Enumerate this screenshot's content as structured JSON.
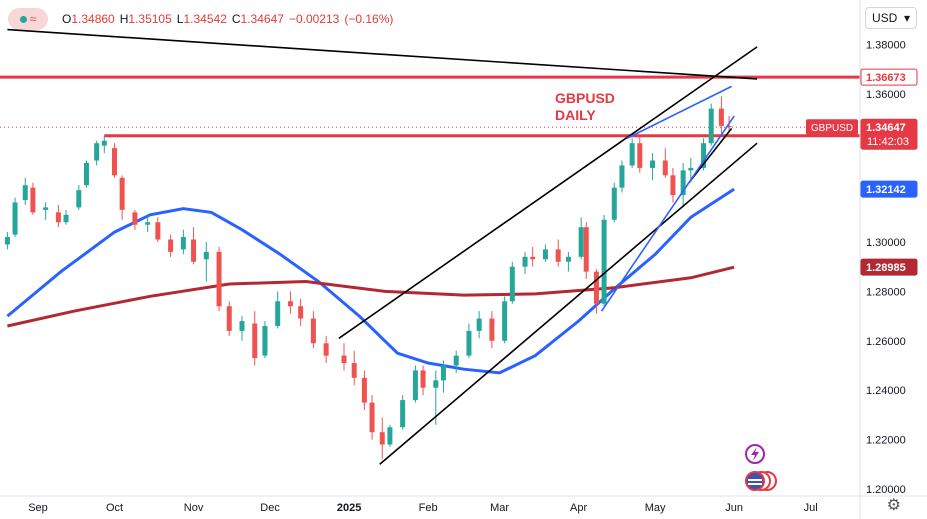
{
  "header": {
    "ohlc": {
      "open_label": "O",
      "open": "1.34860",
      "high_label": "H",
      "high": "1.35105",
      "low_label": "L",
      "low": "1.34542",
      "close_label": "C",
      "close": "1.34647",
      "change": "−0.00213",
      "change_pct": "(−0.16%)"
    },
    "currency": "USD",
    "currency_caret": "▾"
  },
  "chart_data": {
    "type": "candlestick",
    "annotation": [
      "GBPUSD",
      "DAILY"
    ],
    "y_ticks": [
      1.2,
      1.22,
      1.24,
      1.26,
      1.28,
      1.3,
      1.36,
      1.38
    ],
    "y_range": [
      1.19917,
      1.39883
    ],
    "x_ticks": [
      {
        "label": "Sep",
        "date": "2024-09-01"
      },
      {
        "label": "Oct",
        "date": "2024-10-01"
      },
      {
        "label": "Nov",
        "date": "2024-11-01"
      },
      {
        "label": "Dec",
        "date": "2024-12-01"
      },
      {
        "label": "2025",
        "date": "2025-01-01"
      },
      {
        "label": "Feb",
        "date": "2025-02-01"
      },
      {
        "label": "Mar",
        "date": "2025-03-01"
      },
      {
        "label": "Apr",
        "date": "2025-04-01"
      },
      {
        "label": "May",
        "date": "2025-05-01"
      },
      {
        "label": "Jun",
        "date": "2025-06-01"
      },
      {
        "label": "Jul",
        "date": "2025-07-01"
      }
    ],
    "price_labels": [
      {
        "text": "1.36673",
        "value": 1.36673,
        "style": "red-outline"
      },
      {
        "text": "1.34647",
        "value": 1.34647,
        "style": "red-fill",
        "symbol": "GBPUSD",
        "timer": "11:42:03"
      },
      {
        "text": "1.32142",
        "value": 1.32142,
        "style": "blue-fill"
      },
      {
        "text": "1.28985",
        "value": 1.28985,
        "style": "darkred-fill"
      }
    ],
    "horizontal_lines": [
      {
        "value": 1.36673,
        "color": "#e53945"
      },
      {
        "value": 1.343,
        "color": "#e53945",
        "from_date": "2024-09-27"
      }
    ],
    "current_price": 1.34647,
    "moving_averages": [
      {
        "color": "#2962ff",
        "points": [
          [
            "2024-08-20",
            1.27
          ],
          [
            "2024-09-10",
            1.288
          ],
          [
            "2024-10-01",
            1.304
          ],
          [
            "2024-10-15",
            1.311
          ],
          [
            "2024-10-28",
            1.3135
          ],
          [
            "2024-11-08",
            1.312
          ],
          [
            "2024-11-20",
            1.305
          ],
          [
            "2024-12-05",
            1.295
          ],
          [
            "2024-12-20",
            1.284
          ],
          [
            "2025-01-05",
            1.27
          ],
          [
            "2025-01-20",
            1.255
          ],
          [
            "2025-02-01",
            1.251
          ],
          [
            "2025-02-15",
            1.2485
          ],
          [
            "2025-03-01",
            1.247
          ],
          [
            "2025-03-15",
            1.254
          ],
          [
            "2025-04-01",
            1.268
          ],
          [
            "2025-04-15",
            1.281
          ],
          [
            "2025-05-01",
            1.295
          ],
          [
            "2025-05-15",
            1.31
          ],
          [
            "2025-06-01",
            1.3214
          ]
        ]
      },
      {
        "color": "#b22833",
        "points": [
          [
            "2024-08-20",
            1.266
          ],
          [
            "2024-09-15",
            1.272
          ],
          [
            "2024-10-15",
            1.278
          ],
          [
            "2024-11-15",
            1.283
          ],
          [
            "2024-12-15",
            1.284
          ],
          [
            "2025-01-15",
            1.28
          ],
          [
            "2025-02-15",
            1.2785
          ],
          [
            "2025-03-15",
            1.279
          ],
          [
            "2025-04-15",
            1.2815
          ],
          [
            "2025-05-15",
            1.2855
          ],
          [
            "2025-06-01",
            1.2898
          ]
        ]
      }
    ],
    "trendlines": [
      {
        "color": "#000000",
        "points": [
          [
            "2024-08-20",
            1.386
          ],
          [
            "2025-06-10",
            1.366
          ]
        ]
      },
      {
        "color": "#000000",
        "points": [
          [
            "2024-12-28",
            1.261
          ],
          [
            "2025-06-10",
            1.379
          ]
        ]
      },
      {
        "color": "#000000",
        "points": [
          [
            "2025-01-13",
            1.21
          ],
          [
            "2025-06-10",
            1.34
          ]
        ]
      },
      {
        "color": "#000000",
        "points": [
          [
            "2025-05-15",
            1.325
          ],
          [
            "2025-05-31",
            1.346
          ]
        ]
      },
      {
        "color": "#2962ff",
        "points": [
          [
            "2025-04-10",
            1.272
          ],
          [
            "2025-06-01",
            1.351
          ]
        ]
      },
      {
        "color": "#2962ff",
        "points": [
          [
            "2025-04-20",
            1.342
          ],
          [
            "2025-05-31",
            1.363
          ]
        ]
      }
    ],
    "candles": [
      [
        "2024-08-20",
        1.299,
        1.304,
        1.297,
        1.302
      ],
      [
        "2024-08-23",
        1.303,
        1.318,
        1.302,
        1.316
      ],
      [
        "2024-08-27",
        1.317,
        1.326,
        1.315,
        1.323
      ],
      [
        "2024-08-30",
        1.322,
        1.324,
        1.311,
        1.312
      ],
      [
        "2024-09-04",
        1.313,
        1.316,
        1.309,
        1.314
      ],
      [
        "2024-09-09",
        1.312,
        1.315,
        1.306,
        1.308
      ],
      [
        "2024-09-12",
        1.308,
        1.313,
        1.307,
        1.311
      ],
      [
        "2024-09-17",
        1.314,
        1.323,
        1.313,
        1.321
      ],
      [
        "2024-09-20",
        1.323,
        1.333,
        1.322,
        1.332
      ],
      [
        "2024-09-24",
        1.333,
        1.341,
        1.331,
        1.34
      ],
      [
        "2024-09-27",
        1.339,
        1.343,
        1.336,
        1.341
      ],
      [
        "2024-10-01",
        1.338,
        1.34,
        1.326,
        1.327
      ],
      [
        "2024-10-04",
        1.326,
        1.327,
        1.309,
        1.313
      ],
      [
        "2024-10-09",
        1.312,
        1.313,
        1.305,
        1.307
      ],
      [
        "2024-10-14",
        1.307,
        1.311,
        1.304,
        1.308
      ],
      [
        "2024-10-18",
        1.308,
        1.31,
        1.3,
        1.301
      ],
      [
        "2024-10-23",
        1.301,
        1.303,
        1.294,
        1.296
      ],
      [
        "2024-10-28",
        1.297,
        1.305,
        1.295,
        1.302
      ],
      [
        "2024-11-01",
        1.301,
        1.306,
        1.291,
        1.292
      ],
      [
        "2024-11-06",
        1.293,
        1.3,
        1.284,
        1.296
      ],
      [
        "2024-11-11",
        1.296,
        1.298,
        1.272,
        1.274
      ],
      [
        "2024-11-15",
        1.274,
        1.276,
        1.262,
        1.264
      ],
      [
        "2024-11-20",
        1.264,
        1.27,
        1.26,
        1.268
      ],
      [
        "2024-11-25",
        1.267,
        1.272,
        1.25,
        1.253
      ],
      [
        "2024-11-29",
        1.254,
        1.268,
        1.253,
        1.266
      ],
      [
        "2024-12-04",
        1.266,
        1.28,
        1.265,
        1.276
      ],
      [
        "2024-12-09",
        1.276,
        1.28,
        1.271,
        1.274
      ],
      [
        "2024-12-13",
        1.274,
        1.277,
        1.266,
        1.269
      ],
      [
        "2024-12-18",
        1.269,
        1.272,
        1.257,
        1.259
      ],
      [
        "2024-12-23",
        1.259,
        1.262,
        1.251,
        1.254
      ],
      [
        "2024-12-30",
        1.254,
        1.259,
        1.248,
        1.251
      ],
      [
        "2025-01-03",
        1.251,
        1.256,
        1.242,
        1.245
      ],
      [
        "2025-01-07",
        1.245,
        1.248,
        1.232,
        1.235
      ],
      [
        "2025-01-10",
        1.235,
        1.238,
        1.22,
        1.223
      ],
      [
        "2025-01-14",
        1.223,
        1.229,
        1.212,
        1.218
      ],
      [
        "2025-01-17",
        1.218,
        1.226,
        1.217,
        1.225
      ],
      [
        "2025-01-22",
        1.225,
        1.238,
        1.224,
        1.236
      ],
      [
        "2025-01-27",
        1.236,
        1.25,
        1.235,
        1.248
      ],
      [
        "2025-01-30",
        1.248,
        1.25,
        1.238,
        1.241
      ],
      [
        "2025-02-04",
        1.241,
        1.248,
        1.226,
        1.244
      ],
      [
        "2025-02-07",
        1.244,
        1.252,
        1.239,
        1.25
      ],
      [
        "2025-02-12",
        1.25,
        1.256,
        1.247,
        1.254
      ],
      [
        "2025-02-17",
        1.254,
        1.267,
        1.253,
        1.264
      ],
      [
        "2025-02-21",
        1.264,
        1.272,
        1.261,
        1.269
      ],
      [
        "2025-02-26",
        1.269,
        1.272,
        1.257,
        1.26
      ],
      [
        "2025-03-03",
        1.26,
        1.278,
        1.259,
        1.276
      ],
      [
        "2025-03-06",
        1.276,
        1.292,
        1.275,
        1.29
      ],
      [
        "2025-03-11",
        1.29,
        1.296,
        1.287,
        1.294
      ],
      [
        "2025-03-14",
        1.294,
        1.298,
        1.29,
        1.293
      ],
      [
        "2025-03-19",
        1.293,
        1.299,
        1.292,
        1.297
      ],
      [
        "2025-03-24",
        1.297,
        1.301,
        1.29,
        1.292
      ],
      [
        "2025-03-28",
        1.292,
        1.296,
        1.288,
        1.294
      ],
      [
        "2025-04-02",
        1.294,
        1.31,
        1.293,
        1.306
      ],
      [
        "2025-04-04",
        1.306,
        1.308,
        1.285,
        1.288
      ],
      [
        "2025-04-08",
        1.288,
        1.289,
        1.271,
        1.275
      ],
      [
        "2025-04-11",
        1.275,
        1.311,
        1.274,
        1.309
      ],
      [
        "2025-04-15",
        1.309,
        1.324,
        1.308,
        1.322
      ],
      [
        "2025-04-18",
        1.322,
        1.333,
        1.32,
        1.331
      ],
      [
        "2025-04-22",
        1.331,
        1.342,
        1.33,
        1.34
      ],
      [
        "2025-04-25",
        1.34,
        1.343,
        1.328,
        1.33
      ],
      [
        "2025-04-30",
        1.33,
        1.336,
        1.325,
        1.333
      ],
      [
        "2025-05-05",
        1.333,
        1.338,
        1.326,
        1.327
      ],
      [
        "2025-05-08",
        1.327,
        1.33,
        1.316,
        1.319
      ],
      [
        "2025-05-12",
        1.319,
        1.332,
        1.314,
        1.329
      ],
      [
        "2025-05-15",
        1.329,
        1.334,
        1.324,
        1.33
      ],
      [
        "2025-05-20",
        1.33,
        1.342,
        1.329,
        1.34
      ],
      [
        "2025-05-23",
        1.34,
        1.356,
        1.339,
        1.354
      ],
      [
        "2025-05-27",
        1.354,
        1.359,
        1.344,
        1.347
      ],
      [
        "2025-05-30",
        1.347,
        1.351,
        1.345,
        1.3465
      ]
    ]
  }
}
